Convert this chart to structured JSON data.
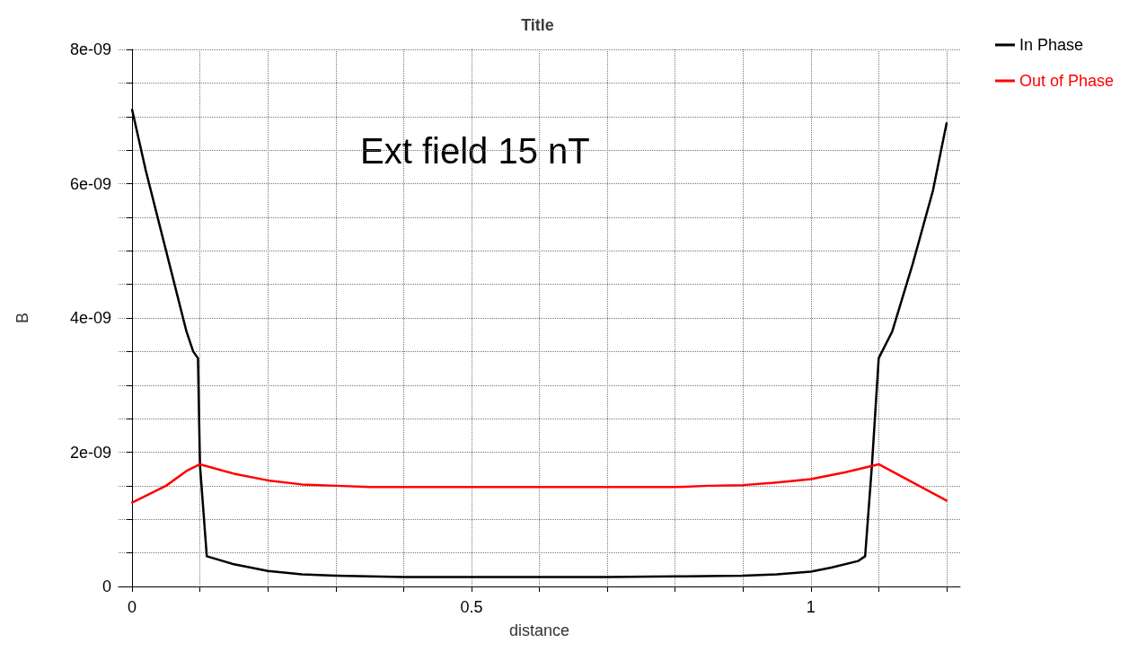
{
  "chart_data": {
    "type": "line",
    "title": "Title",
    "xlabel": "distance",
    "ylabel": "B",
    "annotations": [
      "Ext field 15 nT"
    ],
    "xlim": [
      -0.02,
      1.22
    ],
    "xticks": [
      {
        "value": 0,
        "label": "0"
      },
      {
        "value": 0.1,
        "label": null
      },
      {
        "value": 0.2,
        "label": null
      },
      {
        "value": 0.3,
        "label": null
      },
      {
        "value": 0.4,
        "label": null
      },
      {
        "value": 0.5,
        "label": "0.5"
      },
      {
        "value": 0.6,
        "label": null
      },
      {
        "value": 0.7,
        "label": null
      },
      {
        "value": 0.8,
        "label": null
      },
      {
        "value": 0.9,
        "label": null
      },
      {
        "value": 1,
        "label": "1"
      },
      {
        "value": 1.1,
        "label": null
      },
      {
        "value": 1.2,
        "label": null
      }
    ],
    "ylim": [
      0,
      8e-09
    ],
    "yticks": [
      {
        "value": 0,
        "label": "0"
      },
      {
        "value": 5e-10,
        "label": null
      },
      {
        "value": 1e-09,
        "label": null
      },
      {
        "value": 1.5e-09,
        "label": null
      },
      {
        "value": 2e-09,
        "label": "2e-09"
      },
      {
        "value": 2.5e-09,
        "label": null
      },
      {
        "value": 3e-09,
        "label": null
      },
      {
        "value": 3.5e-09,
        "label": null
      },
      {
        "value": 4e-09,
        "label": "4e-09"
      },
      {
        "value": 4.5e-09,
        "label": null
      },
      {
        "value": 5e-09,
        "label": null
      },
      {
        "value": 5.5e-09,
        "label": null
      },
      {
        "value": 6e-09,
        "label": "6e-09"
      },
      {
        "value": 6.5e-09,
        "label": null
      },
      {
        "value": 7e-09,
        "label": null
      },
      {
        "value": 7.5e-09,
        "label": null
      },
      {
        "value": 8e-09,
        "label": "8e-09"
      }
    ],
    "grid": true,
    "legend": "top right",
    "marker": "none",
    "line_style": "solid",
    "series": [
      {
        "name": "In Phase",
        "color": "#000000",
        "x": [
          0,
          0.02,
          0.04,
          0.06,
          0.08,
          0.09,
          0.097,
          0.1,
          0.11,
          0.15,
          0.2,
          0.25,
          0.3,
          0.4,
          0.5,
          0.6,
          0.7,
          0.8,
          0.9,
          0.95,
          1.0,
          1.03,
          1.07,
          1.08,
          1.09,
          1.1,
          1.12,
          1.15,
          1.18,
          1.2
        ],
        "values": [
          7.1e-09,
          6.2e-09,
          5.4e-09,
          4.6e-09,
          3.8e-09,
          3.5e-09,
          3.4e-09,
          1.8e-09,
          4.5e-10,
          3.3e-10,
          2.3e-10,
          1.8e-10,
          1.6e-10,
          1.4e-10,
          1.4e-10,
          1.4e-10,
          1.4e-10,
          1.5e-10,
          1.6e-10,
          1.8e-10,
          2.2e-10,
          2.8e-10,
          3.8e-10,
          4.5e-10,
          1.8e-09,
          3.4e-09,
          3.8e-09,
          4.8e-09,
          5.9e-09,
          6.9e-09
        ]
      },
      {
        "name": "Out of Phase",
        "color": "#ff0000",
        "x": [
          0,
          0.05,
          0.08,
          0.1,
          0.15,
          0.2,
          0.25,
          0.3,
          0.35,
          0.5,
          0.7,
          0.8,
          0.85,
          0.9,
          0.95,
          1.0,
          1.05,
          1.1,
          1.15,
          1.2
        ],
        "values": [
          1.25e-09,
          1.5e-09,
          1.72e-09,
          1.82e-09,
          1.68e-09,
          1.58e-09,
          1.52e-09,
          1.5e-09,
          1.48e-09,
          1.48e-09,
          1.48e-09,
          1.48e-09,
          1.5e-09,
          1.51e-09,
          1.55e-09,
          1.6e-09,
          1.7e-09,
          1.82e-09,
          1.55e-09,
          1.28e-09
        ]
      }
    ]
  }
}
